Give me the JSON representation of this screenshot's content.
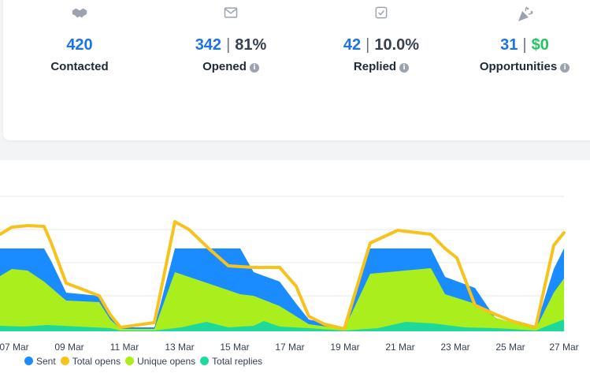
{
  "stats": [
    {
      "icon": "handshake-icon",
      "primary": "420",
      "secondary": "",
      "secondary_style": "",
      "label": "Contacted",
      "info": false
    },
    {
      "icon": "envelope-icon",
      "primary": "342",
      "secondary": "81%",
      "secondary_style": "dark",
      "label": "Opened",
      "info": true
    },
    {
      "icon": "checkbox-icon",
      "primary": "42",
      "secondary": "10.0%",
      "secondary_style": "dark",
      "label": "Replied",
      "info": true
    },
    {
      "icon": "party-popper-icon",
      "primary": "31",
      "secondary": "$0",
      "secondary_style": "green",
      "label": "Opportunities",
      "info": true
    }
  ],
  "chart_data": {
    "type": "area",
    "categories": [
      "07 Mar",
      "08 Mar",
      "09 Mar",
      "10 Mar",
      "11 Mar",
      "12 Mar",
      "13 Mar",
      "14 Mar",
      "15 Mar",
      "16 Mar",
      "17 Mar",
      "18 Mar",
      "19 Mar",
      "20 Mar",
      "21 Mar",
      "22 Mar",
      "23 Mar",
      "24 Mar",
      "25 Mar",
      "26 Mar",
      "27 Mar"
    ],
    "tick_labels": [
      "07 Mar",
      "09 Mar",
      "11 Mar",
      "13 Mar",
      "15 Mar",
      "17 Mar",
      "19 Mar",
      "21 Mar",
      "23 Mar",
      "25 Mar",
      "27 Mar"
    ],
    "series": [
      {
        "name": "Sent",
        "color": "#1a8cff"
      },
      {
        "name": "Total opens",
        "color": "#f5c31b"
      },
      {
        "name": "Unique opens",
        "color": "#aaee1e"
      },
      {
        "name": "Total replies",
        "color": "#1fd99a"
      }
    ],
    "grid": true,
    "legend_position": "bottom-left"
  }
}
